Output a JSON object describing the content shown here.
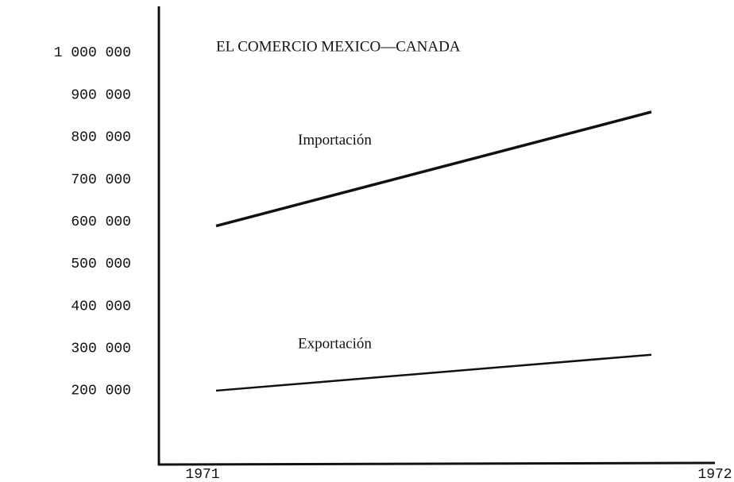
{
  "chart_data": {
    "type": "line",
    "title": "EL COMERCIO MEXICO—CANADA",
    "categories": [
      "1971",
      "1972"
    ],
    "series": [
      {
        "name": "Importación",
        "color": "#111111",
        "values": [
          590000,
          860000
        ]
      },
      {
        "name": "Exportación",
        "color": "#111111",
        "values": [
          200000,
          285000
        ]
      }
    ],
    "ylim": [
      25000,
      1110000
    ],
    "yticks": [
      {
        "value": 1000000,
        "label": "1 000 000"
      },
      {
        "value": 900000,
        "label": "900 000"
      },
      {
        "value": 800000,
        "label": "800 000"
      },
      {
        "value": 700000,
        "label": "700 000"
      },
      {
        "value": 600000,
        "label": "600 000"
      },
      {
        "value": 500000,
        "label": "500 000"
      },
      {
        "value": 400000,
        "label": "400 000"
      },
      {
        "value": 300000,
        "label": "300 000"
      },
      {
        "value": 200000,
        "label": "200 000"
      }
    ],
    "grid": false
  }
}
